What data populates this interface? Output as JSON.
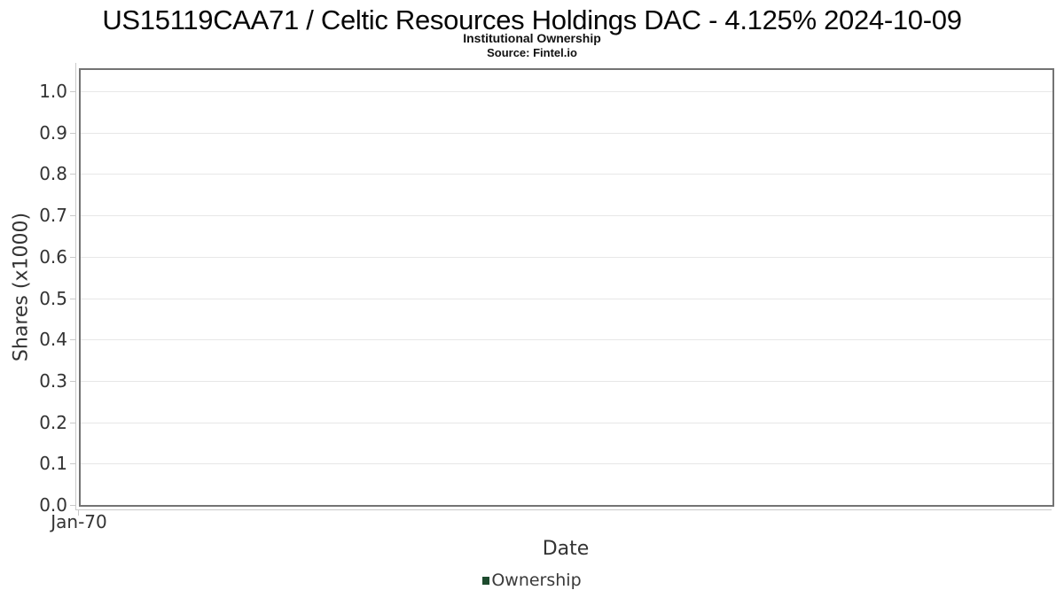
{
  "header": {
    "title": "US15119CAA71 / Celtic Resources Holdings DAC - 4.125% 2024-10-09",
    "subtitle": "Institutional Ownership",
    "source": "Source: Fintel.io"
  },
  "chart_data": {
    "type": "line",
    "title": "US15119CAA71 / Celtic Resources Holdings DAC - 4.125% 2024-10-09",
    "subtitle": "Institutional Ownership",
    "source": "Source: Fintel.io",
    "xlabel": "Date",
    "ylabel": "Shares (x1000)",
    "x_tick_labels": [
      "Jan-70"
    ],
    "y_tick_labels": [
      "0.0",
      "0.1",
      "0.2",
      "0.3",
      "0.4",
      "0.5",
      "0.6",
      "0.7",
      "0.8",
      "0.9",
      "1.0"
    ],
    "ylim": [
      0.0,
      1.05
    ],
    "grid": "horizontal-only",
    "legend_position": "bottom-center",
    "legend": [
      {
        "label": "Ownership",
        "marker": "square",
        "color": "#1d4b2e"
      }
    ],
    "series": [
      {
        "name": "Ownership",
        "points": []
      }
    ],
    "colors": {
      "frame": "#737373",
      "gridline": "#e7e7e7",
      "axis_line": "#c9c9c9",
      "tick": "#c9c9c9",
      "tick_label_text": "#333333",
      "title_text": "#050505",
      "legend_text": "#3a3a3a"
    }
  }
}
